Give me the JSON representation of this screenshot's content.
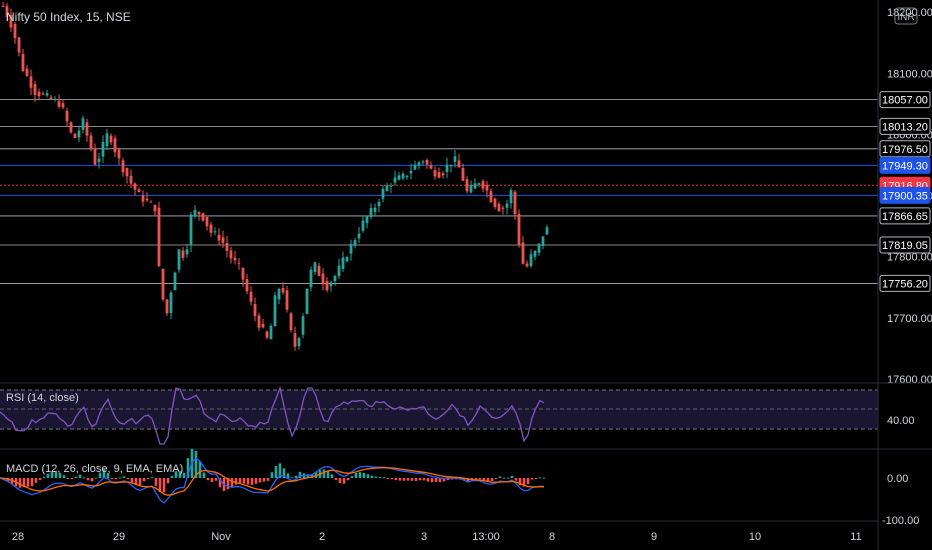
{
  "header": {
    "title": "Nifty 50 Index, 15, NSE",
    "currency": "INR"
  },
  "price_axis": {
    "ticks": [
      "18200.00",
      "18100.00",
      "18000.00",
      "17900.00",
      "17800.00",
      "17700.00",
      "17600.00"
    ]
  },
  "level_labels": [
    {
      "text": "18057.00",
      "style": "line"
    },
    {
      "text": "18013.20",
      "style": "line"
    },
    {
      "text": "17976.50",
      "style": "line"
    },
    {
      "text": "17949.30",
      "style": "blue"
    },
    {
      "text": "17916.80",
      "style": "red"
    },
    {
      "text": "17900.35",
      "style": "blue"
    },
    {
      "text": "17866.65",
      "style": "line"
    },
    {
      "text": "17819.05",
      "style": "line"
    },
    {
      "text": "17756.20",
      "style": "line"
    }
  ],
  "rsi": {
    "title": "RSI (14, close)",
    "tick": "40.00"
  },
  "macd": {
    "title": "MACD (12, 26, close, 9, EMA, EMA)",
    "ticks": [
      "0.00",
      "-100.00"
    ]
  },
  "time_axis": {
    "labels": [
      "28",
      "29",
      "Nov",
      "2",
      "3",
      "13:00",
      "8",
      "9",
      "10",
      "11"
    ]
  },
  "colors": {
    "up": "#26a69a",
    "down": "#ef5350",
    "rsi": "#7e57c2",
    "macd": "#2962ff",
    "signal": "#ff6d00",
    "level_blue": "#1e53e5",
    "level_red": "#f23645"
  },
  "chart_data": {
    "type": "candlestick",
    "title": "Nifty 50 Index, 15, NSE",
    "ylim": [
      17590,
      18220
    ],
    "price_levels": [
      18057.0,
      18013.2,
      17976.5,
      17949.3,
      17916.8,
      17900.35,
      17866.65,
      17819.05,
      17756.2
    ],
    "close_path": [
      [
        0,
        18210
      ],
      [
        6,
        18175
      ],
      [
        12,
        18110
      ],
      [
        20,
        18070
      ],
      [
        28,
        18060
      ],
      [
        36,
        18050
      ],
      [
        44,
        17990
      ],
      [
        50,
        18020
      ],
      [
        58,
        17950
      ],
      [
        66,
        18005
      ],
      [
        72,
        17960
      ],
      [
        80,
        17920
      ],
      [
        85,
        17900
      ],
      [
        90,
        17890
      ],
      [
        95,
        17880
      ],
      [
        98,
        17760
      ],
      [
        102,
        17700
      ],
      [
        106,
        17760
      ],
      [
        110,
        17810
      ],
      [
        114,
        17800
      ],
      [
        118,
        17875
      ],
      [
        124,
        17870
      ],
      [
        130,
        17840
      ],
      [
        136,
        17830
      ],
      [
        142,
        17800
      ],
      [
        148,
        17780
      ],
      [
        154,
        17730
      ],
      [
        158,
        17700
      ],
      [
        162,
        17680
      ],
      [
        166,
        17660
      ],
      [
        170,
        17730
      ],
      [
        174,
        17760
      ],
      [
        178,
        17700
      ],
      [
        182,
        17650
      ],
      [
        186,
        17680
      ],
      [
        190,
        17750
      ],
      [
        194,
        17790
      ],
      [
        198,
        17770
      ],
      [
        202,
        17750
      ],
      [
        208,
        17770
      ],
      [
        214,
        17800
      ],
      [
        220,
        17830
      ],
      [
        226,
        17860
      ],
      [
        232,
        17880
      ],
      [
        238,
        17910
      ],
      [
        244,
        17925
      ],
      [
        250,
        17930
      ],
      [
        256,
        17945
      ],
      [
        262,
        17960
      ],
      [
        268,
        17940
      ],
      [
        274,
        17935
      ],
      [
        278,
        17950
      ],
      [
        282,
        17960
      ],
      [
        286,
        17940
      ],
      [
        290,
        17905
      ],
      [
        294,
        17915
      ],
      [
        298,
        17925
      ],
      [
        302,
        17910
      ],
      [
        306,
        17890
      ],
      [
        310,
        17880
      ],
      [
        314,
        17880
      ],
      [
        316,
        17895
      ],
      [
        318,
        17910
      ],
      [
        322,
        17830
      ],
      [
        326,
        17775
      ],
      [
        330,
        17800
      ],
      [
        334,
        17810
      ],
      [
        338,
        17840
      ],
      [
        340,
        17845
      ]
    ],
    "rsi": {
      "levels": [
        70,
        50,
        30
      ]
    },
    "macd": {
      "zero": 0
    }
  }
}
